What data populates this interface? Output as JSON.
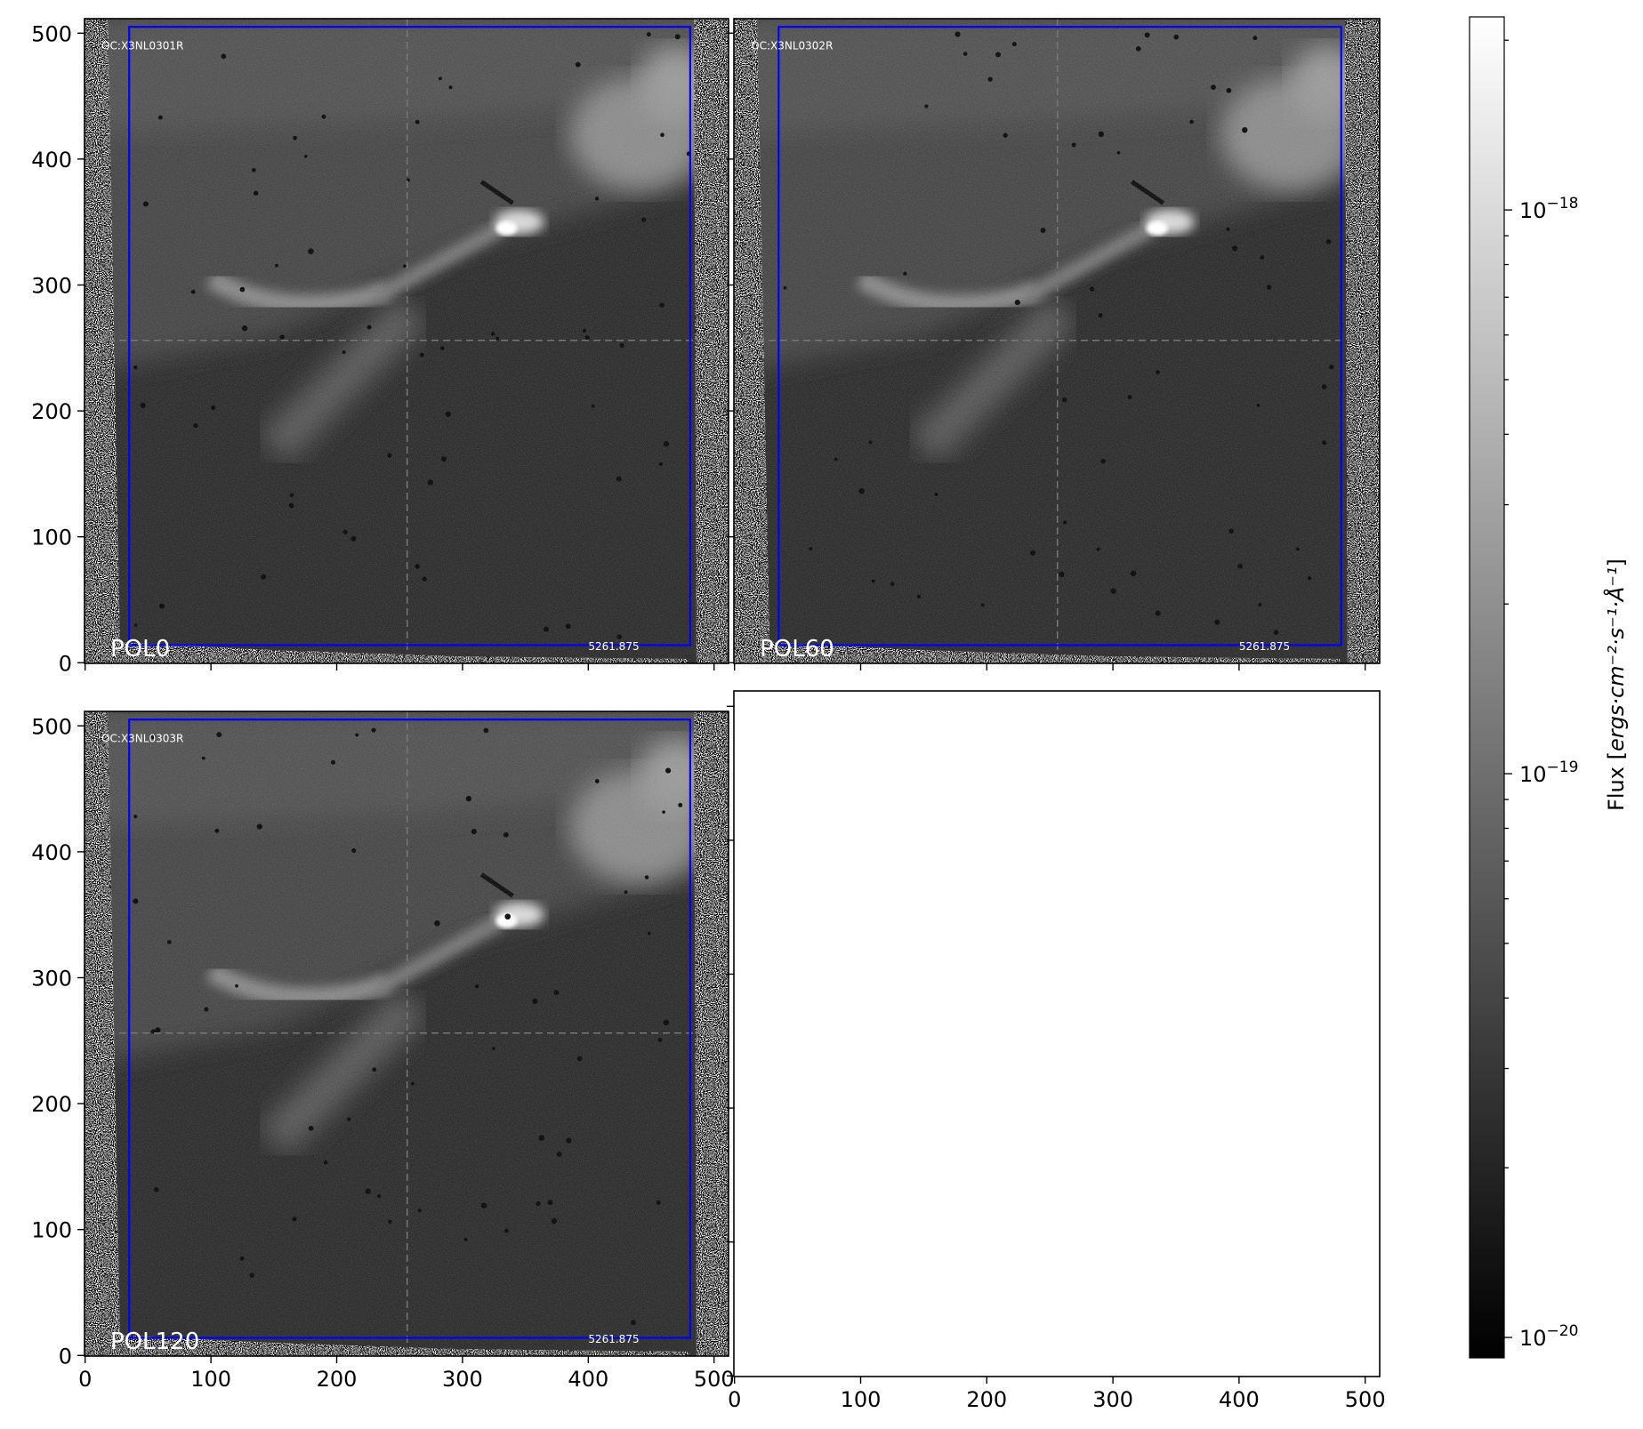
{
  "chart_data": {
    "type": "heatmap",
    "grid": false,
    "panels": [
      {
        "id": "panel-1",
        "label": "POL0",
        "header": "OC:X3NL0301R",
        "wavelength": "5261.875",
        "has_image": true,
        "show_yticklabels": true,
        "show_xticklabels": false
      },
      {
        "id": "panel-2",
        "label": "POL60",
        "header": "OC:X3NL0302R",
        "wavelength": "5261.875",
        "has_image": true,
        "show_yticklabels": false,
        "show_xticklabels": false
      },
      {
        "id": "panel-3",
        "label": "POL120",
        "header": "OC:X3NL0303R",
        "wavelength": "5261.875",
        "has_image": true,
        "show_yticklabels": true,
        "show_xticklabels": true
      },
      {
        "id": "panel-4",
        "label": "",
        "header": "",
        "wavelength": "",
        "has_image": false,
        "show_yticklabels": false,
        "show_xticklabels": true
      }
    ],
    "xlim": [
      -0.5,
      511.5
    ],
    "ylim": [
      -0.5,
      511.5
    ],
    "xticks": [
      "0",
      "100",
      "200",
      "300",
      "400",
      "500"
    ],
    "yticks": [
      "0",
      "100",
      "200",
      "300",
      "400",
      "500"
    ],
    "xtick_values": [
      0,
      100,
      200,
      300,
      400,
      500
    ],
    "ytick_values": [
      0,
      100,
      200,
      300,
      400,
      500
    ],
    "aperture_box": {
      "x0": 35,
      "x1": 481,
      "y0": 14,
      "y1": 505,
      "color": "#0000ff"
    },
    "crosshair": {
      "x": 256,
      "y": 256
    },
    "colormap": "gray",
    "colorbar": {
      "scale": "log",
      "range": [
        9.2e-21,
        2.2e-18
      ],
      "ticks": [
        {
          "value": 1e-18,
          "base": "10",
          "exp": "−18"
        },
        {
          "value": 1e-19,
          "base": "10",
          "exp": "−19"
        },
        {
          "value": 1e-20,
          "base": "10",
          "exp": "−20"
        }
      ],
      "label_prefix": "Flux [",
      "label_units": "ergs·cm⁻²·s⁻¹·Å⁻¹",
      "label_suffix": "]"
    }
  }
}
